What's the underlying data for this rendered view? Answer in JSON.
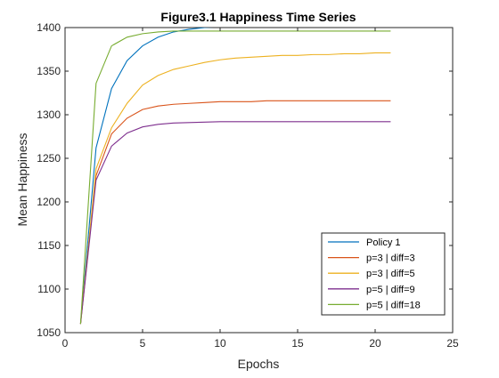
{
  "chart_data": {
    "type": "line",
    "title": "Figure3.1 Happiness Time Series",
    "xlabel": "Epochs",
    "ylabel": "Mean Happiness",
    "xlim": [
      0,
      25
    ],
    "ylim": [
      1050,
      1400
    ],
    "x_ticks": [
      0,
      5,
      10,
      15,
      20,
      25
    ],
    "y_ticks": [
      1050,
      1100,
      1150,
      1200,
      1250,
      1300,
      1350,
      1400
    ],
    "grid": false,
    "legend_position": "bottom-right",
    "x": [
      1,
      2,
      3,
      4,
      5,
      6,
      7,
      8,
      9,
      10,
      11,
      12,
      13,
      14,
      15,
      16,
      17,
      18,
      19,
      20,
      21
    ],
    "series": [
      {
        "name": "Policy 1",
        "color": "#0072BD",
        "values": [
          1060,
          1262,
          1330,
          1362,
          1379,
          1389,
          1395,
          1398,
          1400,
          1401,
          1401,
          1401,
          1401,
          1401,
          1401,
          1401,
          1401,
          1401,
          1401,
          1401,
          1401
        ]
      },
      {
        "name": "p=3 | diff=3",
        "color": "#D95319",
        "values": [
          1060,
          1230,
          1278,
          1296,
          1306,
          1310,
          1312,
          1313,
          1314,
          1315,
          1315,
          1315,
          1316,
          1316,
          1316,
          1316,
          1316,
          1316,
          1316,
          1316,
          1316
        ]
      },
      {
        "name": "p=3 | diff=5",
        "color": "#EDB120",
        "values": [
          1060,
          1238,
          1285,
          1313,
          1334,
          1345,
          1352,
          1356,
          1360,
          1363,
          1365,
          1366,
          1367,
          1368,
          1368,
          1369,
          1369,
          1370,
          1370,
          1371,
          1371
        ]
      },
      {
        "name": "p=5 | diff=9",
        "color": "#7E2F8E",
        "values": [
          1060,
          1225,
          1264,
          1279,
          1286,
          1289,
          1290.5,
          1291,
          1291.5,
          1292,
          1292,
          1292,
          1292,
          1292,
          1292,
          1292,
          1292,
          1292,
          1292,
          1292,
          1292
        ]
      },
      {
        "name": "p=5 | diff=18",
        "color": "#77AC30",
        "values": [
          1060,
          1336,
          1379,
          1389,
          1393,
          1395,
          1396,
          1396,
          1396,
          1396,
          1396,
          1396,
          1396,
          1396,
          1396,
          1396,
          1396,
          1396,
          1396,
          1396,
          1396
        ]
      }
    ]
  }
}
